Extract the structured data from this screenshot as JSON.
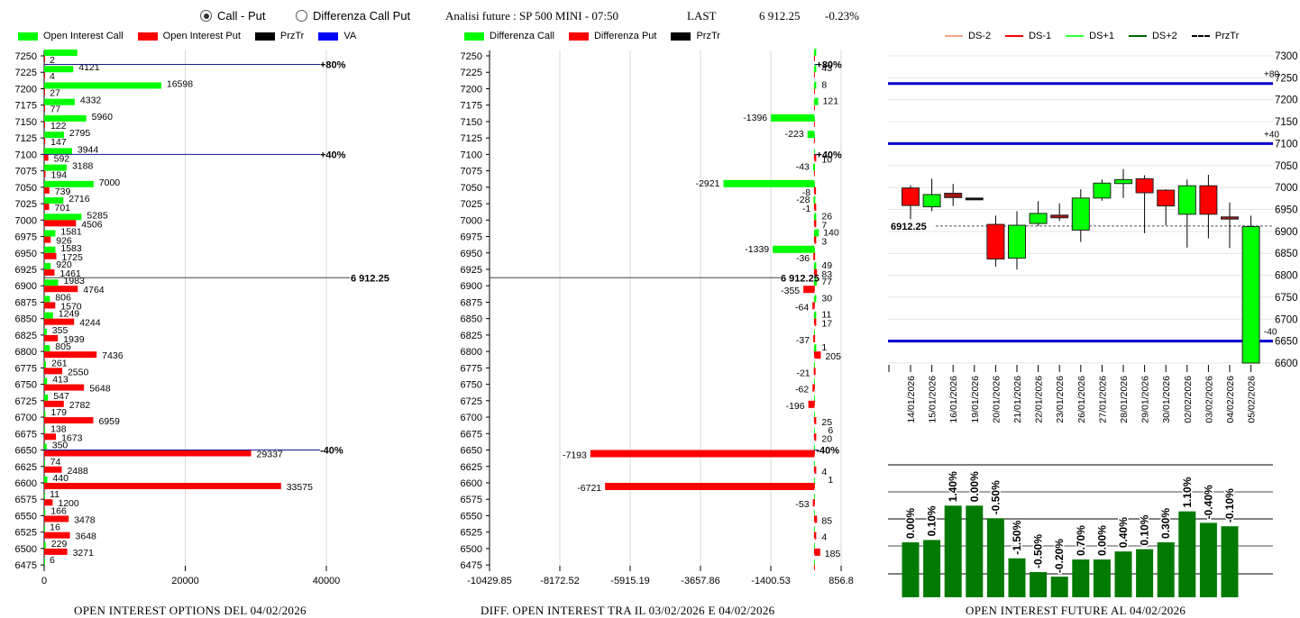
{
  "header": {
    "radio_options": [
      {
        "label": "Call - Put",
        "selected": true
      },
      {
        "label": "Differenza Call Put",
        "selected": false
      }
    ],
    "title": "Analisi future : SP 500 MINI - 07:50",
    "last_label": "LAST",
    "last_value": "6 912.25",
    "change": "-0.23%"
  },
  "colors": {
    "call": "#00ff00",
    "put": "#ff0000",
    "przTr": "#000000",
    "va": "#0000ff",
    "ds_minus2": "#f4a582",
    "ds_minus1": "#ff0000",
    "ds_plus1": "#33ff33",
    "ds_plus2": "#006400",
    "oi_bar": "#007a00"
  },
  "chart_data": [
    {
      "id": "oi-options",
      "type": "bar",
      "orientation": "horizontal",
      "title": "OPEN INTEREST OPTIONS DEL 04/02/2026",
      "legend": [
        "Open Interest Call",
        "Open Interest Put",
        "PrzTr",
        "VA"
      ],
      "legend_position": "top-left",
      "xlim": [
        0,
        40000
      ],
      "xticks": [
        "0",
        "20000",
        "40000"
      ],
      "categories": [
        7250,
        7225,
        7200,
        7175,
        7150,
        7125,
        7100,
        7075,
        7050,
        7025,
        7000,
        6975,
        6950,
        6925,
        6900,
        6875,
        6850,
        6825,
        6800,
        6775,
        6750,
        6725,
        6700,
        6675,
        6650,
        6625,
        6600,
        6575,
        6550,
        6525,
        6500,
        6475
      ],
      "series": [
        {
          "name": "Open Interest Call",
          "values": [
            4700,
            4121,
            16598,
            4332,
            5960,
            2795,
            3944,
            3188,
            7000,
            2716,
            5285,
            1581,
            1583,
            920,
            1983,
            806,
            1249,
            355,
            805,
            261,
            413,
            547,
            179,
            138,
            350,
            74,
            440,
            11,
            166,
            16,
            229,
            6
          ],
          "labels": [
            "",
            "4121",
            "16598",
            "4332",
            "5960",
            "2795",
            "3944",
            "3188",
            "7000",
            "2716",
            "5285",
            "1581",
            "1583",
            "920",
            "1983",
            "806",
            "1249",
            "355",
            "805",
            "261",
            "413",
            "547",
            "179",
            "138",
            "350",
            "74",
            "440",
            "11",
            "166",
            "16",
            "229",
            "6"
          ]
        },
        {
          "name": "Open Interest Put",
          "values": [
            2,
            4,
            27,
            77,
            122,
            147,
            592,
            194,
            739,
            701,
            4506,
            926,
            1725,
            1461,
            4764,
            1570,
            4244,
            1939,
            7436,
            2550,
            5648,
            2782,
            6959,
            1673,
            29337,
            2488,
            33575,
            1200,
            3478,
            3648,
            3271,
            0
          ],
          "labels": [
            "2",
            "4",
            "27",
            "77",
            "122",
            "147",
            "592",
            "194",
            "739",
            "701",
            "4506",
            "926",
            "1725",
            "1461",
            "4764",
            "1570",
            "4244",
            "1939",
            "7436",
            "2550",
            "5648",
            "2782",
            "6959",
            "1673",
            "29337",
            "2488",
            "33575",
            "1200",
            "3478",
            "3648",
            "3271",
            ""
          ]
        }
      ],
      "va_lines": [
        {
          "label": "+80%",
          "strike": 7237
        },
        {
          "label": "+40%",
          "strike": 7100
        },
        {
          "label": "-40%",
          "strike": 6650
        }
      ],
      "przTr": {
        "label": "6 912.25",
        "value": 6912.25
      }
    },
    {
      "id": "oi-diff",
      "type": "bar",
      "orientation": "horizontal",
      "title": "DIFF. OPEN INTEREST TRA IL 03/02/2026 E 04/02/2026",
      "legend": [
        "Differenza Call",
        "Differenza Put",
        "PrzTr"
      ],
      "legend_position": "top-left",
      "xlim": [
        -10429.85,
        856.8
      ],
      "xticks": [
        "-10429.85",
        "-8172.52",
        "-5915.19",
        "-3657.86",
        "-1400.53",
        "856.8"
      ],
      "categories": [
        7250,
        7225,
        7200,
        7175,
        7150,
        7125,
        7100,
        7075,
        7050,
        7025,
        7000,
        6975,
        6950,
        6925,
        6900,
        6875,
        6850,
        6825,
        6800,
        6775,
        6750,
        6725,
        6700,
        6675,
        6650,
        6625,
        6600,
        6575,
        6550,
        6525,
        6500,
        6475
      ],
      "series": [
        {
          "name": "Differenza Call",
          "values": [
            20,
            43,
            8,
            121,
            -1396,
            -223,
            0,
            -43,
            -2921,
            -28,
            26,
            140,
            -1339,
            49,
            77,
            30,
            11,
            0,
            1,
            0,
            0,
            0,
            0,
            0,
            0,
            0,
            0,
            0,
            0,
            0,
            0,
            0
          ],
          "labels": [
            "",
            "43",
            "8",
            "121",
            "-1396",
            "-223",
            "",
            "-43",
            "-2921",
            "-28",
            "26",
            "140",
            "-1339",
            "49",
            "77",
            "30",
            "11",
            "",
            "1",
            "",
            "",
            "",
            "",
            "",
            "",
            "",
            "",
            "",
            "",
            "",
            "",
            ""
          ]
        },
        {
          "name": "Differenza Put",
          "values": [
            0,
            0,
            0,
            0,
            0,
            0,
            10,
            0,
            -8,
            -1,
            7,
            3,
            -36,
            83,
            -355,
            -64,
            17,
            -37,
            205,
            -21,
            -62,
            -196,
            25,
            20,
            -7193,
            4,
            -6721,
            -53,
            85,
            4,
            185,
            0
          ],
          "labels": [
            "",
            "",
            "",
            "",
            "",
            "",
            "10",
            "",
            "-8",
            "-1",
            "7",
            "3",
            "-36",
            "83",
            "-355",
            "-64",
            "17",
            "-37",
            "205",
            "-21",
            "-62",
            "-196",
            "25",
            "20",
            "-7193",
            "4",
            "-6721",
            "-53",
            "85",
            "4",
            "185",
            ""
          ],
          "extra_labels": {
            "6700": "6",
            "6625": "1"
          }
        }
      ],
      "va_lines": [
        {
          "label": "+80%",
          "strike": 7237
        },
        {
          "label": "+40%",
          "strike": 7100
        },
        {
          "label": "-40%",
          "strike": 6650
        }
      ],
      "przTr": {
        "label": "6 912.25",
        "value": 6912.25
      }
    },
    {
      "id": "price-candles",
      "type": "candlestick",
      "legend": [
        "DS-2",
        "DS-1",
        "DS+1",
        "DS+2",
        "PrzTr"
      ],
      "legend_position": "top",
      "ylim": [
        6600,
        7300
      ],
      "yticks": [
        "7300",
        "7250",
        "7200",
        "7150",
        "7100",
        "7050",
        "7000",
        "6950",
        "6900",
        "6850",
        "6800",
        "6750",
        "6700",
        "6650",
        "6600"
      ],
      "dates": [
        "14/01/2026",
        "15/01/2026",
        "16/01/2026",
        "19/01/2026",
        "20/01/2026",
        "21/01/2026",
        "22/01/2026",
        "23/01/2026",
        "26/01/2026",
        "27/01/2026",
        "28/01/2026",
        "29/01/2026",
        "30/01/2026",
        "02/02/2026",
        "03/02/2026",
        "04/02/2026",
        "05/02/2026"
      ],
      "candles": [
        {
          "open": 6999,
          "high": 7005,
          "low": 6928,
          "close": 6959
        },
        {
          "open": 6956,
          "high": 7020,
          "low": 6946,
          "close": 6984
        },
        {
          "open": 6987,
          "high": 7008,
          "low": 6958,
          "close": 6977
        },
        {
          "open": 6976,
          "high": 6976,
          "low": 6976,
          "close": 6976
        },
        {
          "open": 6916,
          "high": 6936,
          "low": 6820,
          "close": 6837
        },
        {
          "open": 6839,
          "high": 6946,
          "low": 6813,
          "close": 6914
        },
        {
          "open": 6918,
          "high": 6969,
          "low": 6912,
          "close": 6941
        },
        {
          "open": 6937,
          "high": 6964,
          "low": 6924,
          "close": 6931
        },
        {
          "open": 6903,
          "high": 6996,
          "low": 6876,
          "close": 6976
        },
        {
          "open": 6976,
          "high": 7018,
          "low": 6970,
          "close": 7010
        },
        {
          "open": 7009,
          "high": 7042,
          "low": 6976,
          "close": 7018
        },
        {
          "open": 7020,
          "high": 7028,
          "low": 6896,
          "close": 6988
        },
        {
          "open": 6994,
          "high": 6996,
          "low": 6914,
          "close": 6958
        },
        {
          "open": 6939,
          "high": 7018,
          "low": 6863,
          "close": 7004
        },
        {
          "open": 7004,
          "high": 7029,
          "low": 6884,
          "close": 6939
        },
        {
          "open": 6933,
          "high": 6966,
          "low": 6862,
          "close": 6928
        },
        {
          "open": 6600,
          "high": 6936,
          "low": 6600,
          "close": 6911
        }
      ],
      "hlines": [
        {
          "label": "+80",
          "value": 7237
        },
        {
          "label": "+40",
          "value": 7100
        },
        {
          "label": "-40",
          "value": 6650
        }
      ],
      "przTr": {
        "label": "6912.25",
        "value": 6912.25
      }
    },
    {
      "id": "oi-future",
      "type": "bar",
      "title": "OPEN INTEREST FUTURE AL 04/02/2026",
      "categories": [
        "14/01/2026",
        "15/01/2026",
        "16/01/2026",
        "19/01/2026",
        "20/01/2026",
        "21/01/2026",
        "22/01/2026",
        "23/01/2026",
        "26/01/2026",
        "27/01/2026",
        "28/01/2026",
        "29/01/2026",
        "30/01/2026",
        "02/02/2026",
        "03/02/2026",
        "04/02/2026"
      ],
      "values": [
        0.48,
        0.5,
        0.8,
        0.8,
        0.69,
        0.34,
        0.22,
        0.18,
        0.33,
        0.33,
        0.4,
        0.42,
        0.48,
        0.75,
        0.65,
        0.62
      ],
      "value_unit": "fraction of plot height",
      "labels": [
        "0.00%",
        "0.10%",
        "1.40%",
        "0.00%",
        "-0.50%",
        "-1.50%",
        "-0.50%",
        "-0.20%",
        "0.70%",
        "0.00%",
        "0.40%",
        "0.10%",
        "0.30%",
        "1.10%",
        "-0.40%",
        "-0.10%"
      ]
    }
  ]
}
